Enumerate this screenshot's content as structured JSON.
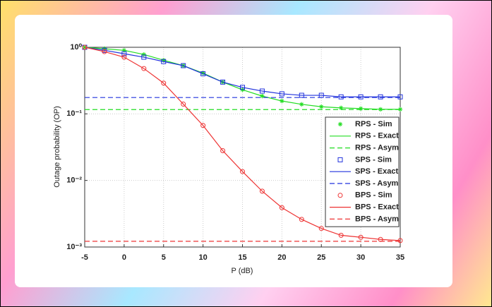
{
  "chart_data": {
    "type": "line",
    "x_label": "P (dB)",
    "y_label": "Outage probability (OP)",
    "x": [
      -5,
      -2.5,
      0,
      2.5,
      5,
      7.5,
      10,
      12.5,
      15,
      17.5,
      20,
      22.5,
      25,
      27.5,
      30,
      32.5,
      35
    ],
    "xlim": [
      -5,
      35
    ],
    "xticks": [
      -5,
      0,
      5,
      10,
      15,
      20,
      25,
      30,
      35
    ],
    "ylim": [
      0.001,
      1
    ],
    "y_scale": "log",
    "yticks": [
      {
        "value": 1,
        "label": "10⁰"
      },
      {
        "value": 0.1,
        "label": "10⁻¹"
      },
      {
        "value": 0.01,
        "label": "10⁻²"
      },
      {
        "value": 0.001,
        "label": "10⁻³"
      }
    ],
    "grid": true,
    "legend": "right",
    "series": [
      {
        "name": "RPS - Sim",
        "color": "#22dd22",
        "style": "star",
        "values": [
          1,
          0.95,
          0.9,
          0.78,
          0.64,
          0.53,
          0.41,
          0.3,
          0.23,
          0.185,
          0.156,
          0.139,
          0.128,
          0.123,
          0.12,
          0.117,
          0.117
        ]
      },
      {
        "name": "RPS - Exact",
        "color": "#22dd22",
        "style": "solid",
        "values": [
          1,
          0.95,
          0.9,
          0.78,
          0.64,
          0.53,
          0.41,
          0.3,
          0.23,
          0.185,
          0.156,
          0.139,
          0.128,
          0.123,
          0.12,
          0.117,
          0.117
        ]
      },
      {
        "name": "RPS - Asym",
        "color": "#22dd22",
        "style": "dash",
        "values": [
          0.116,
          0.116,
          0.116,
          0.116,
          0.116,
          0.116,
          0.116,
          0.116,
          0.116,
          0.116,
          0.116,
          0.116,
          0.116,
          0.116,
          0.116,
          0.116,
          0.116
        ]
      },
      {
        "name": "SPS - Sim",
        "color": "#2233dd",
        "style": "square",
        "values": [
          1,
          0.9,
          0.8,
          0.71,
          0.61,
          0.53,
          0.4,
          0.3,
          0.25,
          0.22,
          0.2,
          0.19,
          0.19,
          0.18,
          0.18,
          0.18,
          0.18
        ]
      },
      {
        "name": "SPS - Exact",
        "color": "#2233dd",
        "style": "solid",
        "values": [
          1,
          0.9,
          0.8,
          0.71,
          0.61,
          0.53,
          0.4,
          0.3,
          0.25,
          0.22,
          0.2,
          0.19,
          0.19,
          0.18,
          0.18,
          0.18,
          0.18
        ]
      },
      {
        "name": "SPS - Asym",
        "color": "#2233dd",
        "style": "dash",
        "values": [
          0.176,
          0.176,
          0.176,
          0.176,
          0.176,
          0.176,
          0.176,
          0.176,
          0.176,
          0.176,
          0.176,
          0.176,
          0.176,
          0.176,
          0.176,
          0.176,
          0.176
        ]
      },
      {
        "name": "BPS - Sim",
        "color": "#ee3333",
        "style": "circle",
        "values": [
          1,
          0.86,
          0.71,
          0.48,
          0.29,
          0.14,
          0.067,
          0.028,
          0.0136,
          0.0069,
          0.0039,
          0.0026,
          0.0019,
          0.0015,
          0.0014,
          0.0013,
          0.00125
        ]
      },
      {
        "name": "BPS - Exact",
        "color": "#ee3333",
        "style": "solid",
        "values": [
          1,
          0.86,
          0.71,
          0.48,
          0.29,
          0.14,
          0.067,
          0.028,
          0.0136,
          0.0069,
          0.0039,
          0.0026,
          0.0019,
          0.0015,
          0.0014,
          0.0013,
          0.00125
        ]
      },
      {
        "name": "BPS - Asym",
        "color": "#ee3333",
        "style": "dash",
        "values": [
          0.00122,
          0.00122,
          0.00122,
          0.00122,
          0.00122,
          0.00122,
          0.00122,
          0.00122,
          0.00122,
          0.00122,
          0.00122,
          0.00122,
          0.00122,
          0.00122,
          0.00122,
          0.00122,
          0.00122
        ]
      }
    ]
  }
}
